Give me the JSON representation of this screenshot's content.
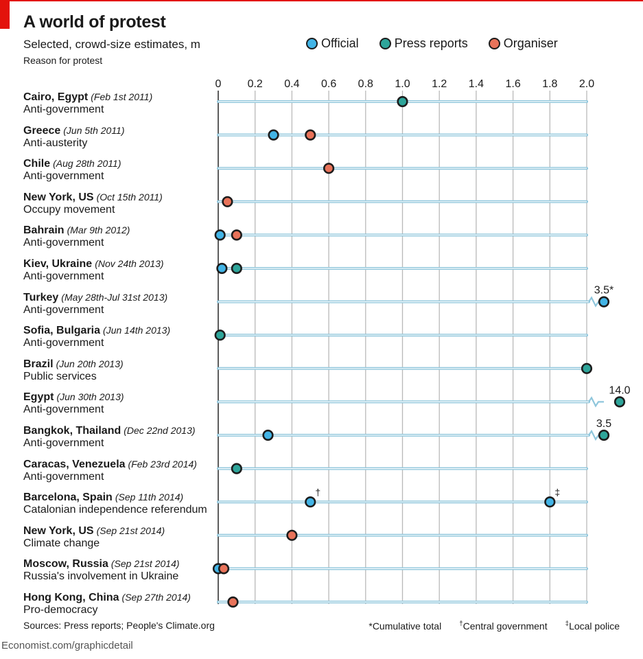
{
  "header": {
    "title": "A world of protest",
    "subtitle": "Selected, crowd-size estimates, m",
    "reason_label": "Reason for protest"
  },
  "legend": [
    {
      "name": "Official",
      "color": "#42b4e6"
    },
    {
      "name": "Press reports",
      "color": "#2ea59a"
    },
    {
      "name": "Organiser",
      "color": "#e8735a"
    }
  ],
  "footer": {
    "sources": "Sources: Press reports; People's Climate.org",
    "notes": [
      {
        "mark": "*",
        "text": "Cumulative total"
      },
      {
        "mark": "†",
        "text": "Central government"
      },
      {
        "mark": "‡",
        "text": "Local police"
      }
    ],
    "credit": "Economist.com/graphicdetail"
  },
  "chart_data": {
    "type": "scatter",
    "xlim": [
      0,
      2.0
    ],
    "x_ticks": [
      "0",
      "0.2",
      "0.4",
      "0.6",
      "0.8",
      "1.0",
      "1.2",
      "1.4",
      "1.6",
      "1.8",
      "2.0"
    ],
    "grid": true,
    "rows": [
      {
        "place": "Cairo, Egypt",
        "date": "(Feb 1st 2011)",
        "reason": "Anti-government",
        "points": [
          {
            "series": "Press reports",
            "value": 1.0
          }
        ]
      },
      {
        "place": "Greece",
        "date": "(Jun 5th 2011)",
        "reason": "Anti-austerity",
        "points": [
          {
            "series": "Official",
            "value": 0.3
          },
          {
            "series": "Organiser",
            "value": 0.5
          }
        ]
      },
      {
        "place": "Chile",
        "date": "(Aug 28th 2011)",
        "reason": "Anti-government",
        "points": [
          {
            "series": "Organiser",
            "value": 0.6
          }
        ]
      },
      {
        "place": "New York, US",
        "date": "(Oct 15th 2011)",
        "reason": "Occupy movement",
        "points": [
          {
            "series": "Organiser",
            "value": 0.05
          }
        ]
      },
      {
        "place": "Bahrain",
        "date": "(Mar 9th 2012)",
        "reason": "Anti-government",
        "points": [
          {
            "series": "Official",
            "value": 0.01
          },
          {
            "series": "Organiser",
            "value": 0.1
          }
        ]
      },
      {
        "place": "Kiev, Ukraine",
        "date": "(Nov 24th 2013)",
        "reason": "Anti-government",
        "points": [
          {
            "series": "Official",
            "value": 0.02
          },
          {
            "series": "Press reports",
            "value": 0.1
          }
        ]
      },
      {
        "place": "Turkey",
        "date": "(May 28th-Jul 31st 2013)",
        "reason": "Anti-government",
        "points": [
          {
            "series": "Official",
            "value": 3.5,
            "label": "3.5*",
            "offscale": true
          }
        ]
      },
      {
        "place": "Sofia, Bulgaria",
        "date": "(Jun 14th 2013)",
        "reason": "Anti-government",
        "points": [
          {
            "series": "Press reports",
            "value": 0.01
          }
        ]
      },
      {
        "place": "Brazil",
        "date": "(Jun 20th 2013)",
        "reason": "Public services",
        "points": [
          {
            "series": "Press reports",
            "value": 2.0
          }
        ]
      },
      {
        "place": "Egypt",
        "date": "(Jun 30th 2013)",
        "reason": "Anti-government",
        "points": [
          {
            "series": "Press reports",
            "value": 14.0,
            "label": "14.0",
            "offscale": true
          }
        ]
      },
      {
        "place": "Bangkok, Thailand",
        "date": "(Dec 22nd 2013)",
        "reason": "Anti-government",
        "points": [
          {
            "series": "Official",
            "value": 0.27
          },
          {
            "series": "Press reports",
            "value": 3.5,
            "label": "3.5",
            "offscale": true
          }
        ]
      },
      {
        "place": "Caracas, Venezuela",
        "date": "(Feb 23rd 2014)",
        "reason": "Anti-government",
        "points": [
          {
            "series": "Press reports",
            "value": 0.1
          }
        ]
      },
      {
        "place": "Barcelona, Spain",
        "date": "(Sep 11th 2014)",
        "reason": "Catalonian independence referendum",
        "points": [
          {
            "series": "Official",
            "value": 0.5,
            "label": "†"
          },
          {
            "series": "Official",
            "value": 1.8,
            "label": "‡"
          }
        ]
      },
      {
        "place": "New York, US",
        "date": "(Sep 21st 2014)",
        "reason": "Climate change",
        "points": [
          {
            "series": "Organiser",
            "value": 0.4
          }
        ]
      },
      {
        "place": "Moscow, Russia",
        "date": "(Sep 21st 2014)",
        "reason": "Russia's involvement in Ukraine",
        "points": [
          {
            "series": "Official",
            "value": 0.0
          },
          {
            "series": "Organiser",
            "value": 0.03
          }
        ]
      },
      {
        "place": "Hong Kong, China",
        "date": "(Sep 27th 2014)",
        "reason": "Pro-democracy",
        "points": [
          {
            "series": "Organiser",
            "value": 0.08
          }
        ]
      }
    ]
  }
}
